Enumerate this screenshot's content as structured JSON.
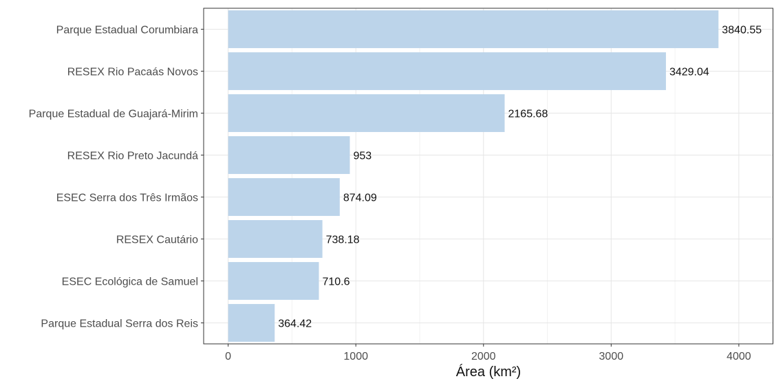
{
  "chart_data": {
    "type": "bar",
    "orientation": "horizontal",
    "categories": [
      "Parque Estadual Corumbiara",
      "RESEX Rio Pacaás Novos",
      "Parque Estadual de Guajará-Mirim",
      "RESEX Rio Preto Jacundá",
      "ESEC Serra dos Três Irmãos",
      "RESEX Cautário",
      "ESEC Ecológica de Samuel",
      "Parque Estadual Serra dos Reis"
    ],
    "values": [
      3840.55,
      3429.04,
      2165.68,
      953,
      874.09,
      738.18,
      710.6,
      364.42
    ],
    "data_labels": [
      "3840.55",
      "3429.04",
      "2165.68",
      "953",
      "874.09",
      "738.18",
      "710.6",
      "364.42"
    ],
    "xlabel": "Área (km²)",
    "ylabel": "",
    "xlim": [
      -192,
      4270
    ],
    "xticks": [
      0,
      1000,
      2000,
      3000,
      4000
    ],
    "xtick_labels": [
      "0",
      "1000",
      "2000",
      "3000",
      "4000"
    ],
    "grid": true,
    "legend": "none",
    "colors": {
      "bar_fill": "#bcd4ea",
      "grid_major": "#e6e6e6",
      "grid_minor": "#f2f2f2",
      "panel_border": "#333333",
      "axis_text": "#4d4d4d",
      "label_text": "#111111"
    }
  }
}
